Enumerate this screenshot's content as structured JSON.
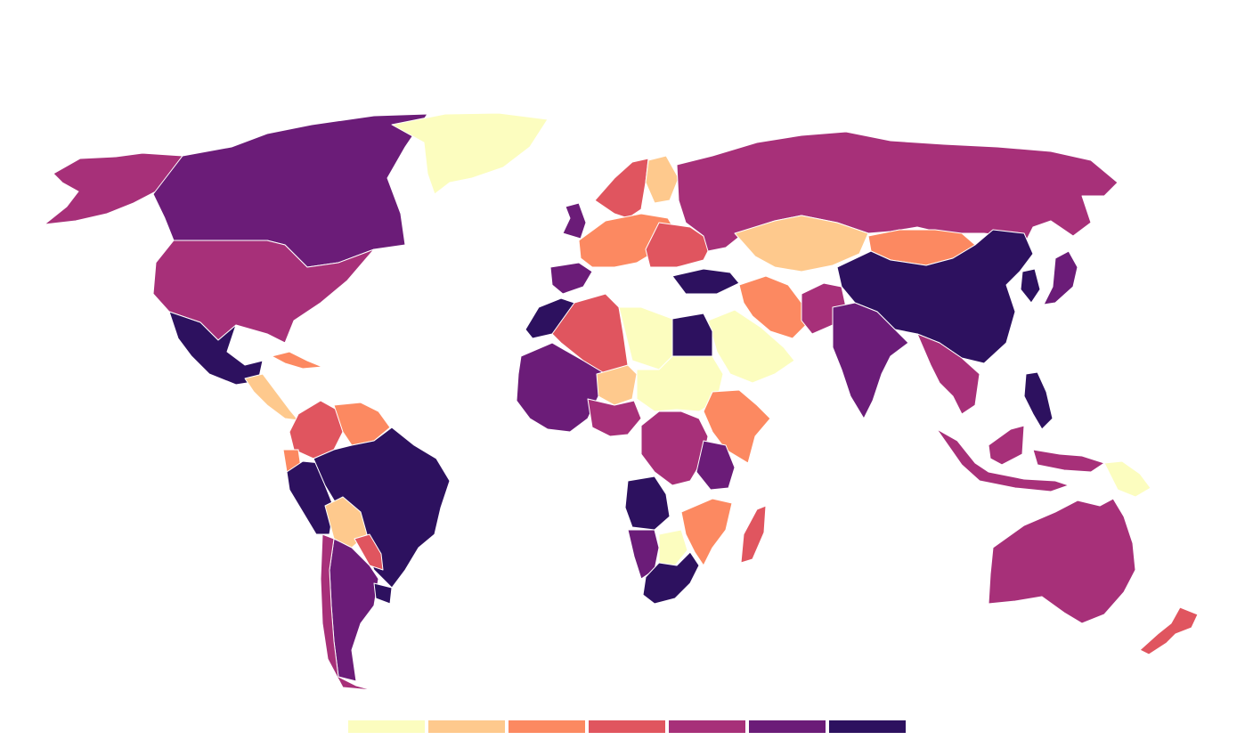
{
  "palette": {
    "c1": "#fcfdbf",
    "c2": "#fec98d",
    "c3": "#fc8961",
    "c4": "#e0555f",
    "c5": "#a73079",
    "c6": "#6b1c78",
    "c7": "#2d115f"
  },
  "legend": {
    "classes": [
      "c1",
      "c2",
      "c3",
      "c4",
      "c5",
      "c6",
      "c7"
    ]
  },
  "regions": [
    {
      "name": "alaska",
      "class": "c5"
    },
    {
      "name": "canada",
      "class": "c6"
    },
    {
      "name": "greenland",
      "class": "c1"
    },
    {
      "name": "usa",
      "class": "c5"
    },
    {
      "name": "mexico",
      "class": "c7"
    },
    {
      "name": "central-america",
      "class": "c2"
    },
    {
      "name": "cuba",
      "class": "c3"
    },
    {
      "name": "colombia",
      "class": "c4"
    },
    {
      "name": "venezuela",
      "class": "c3"
    },
    {
      "name": "ecuador",
      "class": "c3"
    },
    {
      "name": "peru",
      "class": "c7"
    },
    {
      "name": "brazil",
      "class": "c7"
    },
    {
      "name": "bolivia",
      "class": "c2"
    },
    {
      "name": "paraguay",
      "class": "c4"
    },
    {
      "name": "argentina",
      "class": "c6"
    },
    {
      "name": "chile",
      "class": "c5"
    },
    {
      "name": "uruguay",
      "class": "c7"
    },
    {
      "name": "scandinavia",
      "class": "c4"
    },
    {
      "name": "finland",
      "class": "c2"
    },
    {
      "name": "uk",
      "class": "c6"
    },
    {
      "name": "western-europe",
      "class": "c3"
    },
    {
      "name": "iberia",
      "class": "c6"
    },
    {
      "name": "eastern-europe",
      "class": "c4"
    },
    {
      "name": "russia",
      "class": "c5"
    },
    {
      "name": "kazakhstan",
      "class": "c2"
    },
    {
      "name": "mongolia",
      "class": "c3"
    },
    {
      "name": "china",
      "class": "c7"
    },
    {
      "name": "turkey",
      "class": "c7"
    },
    {
      "name": "iran",
      "class": "c3"
    },
    {
      "name": "saudi-arabia",
      "class": "c1"
    },
    {
      "name": "pakistan",
      "class": "c5"
    },
    {
      "name": "india",
      "class": "c6"
    },
    {
      "name": "southeast-asia",
      "class": "c5"
    },
    {
      "name": "japan",
      "class": "c6"
    },
    {
      "name": "korea",
      "class": "c7"
    },
    {
      "name": "philippines",
      "class": "c7"
    },
    {
      "name": "indonesia",
      "class": "c5"
    },
    {
      "name": "papua",
      "class": "c1"
    },
    {
      "name": "australia",
      "class": "c5"
    },
    {
      "name": "new-zealand",
      "class": "c4"
    },
    {
      "name": "morocco",
      "class": "c7"
    },
    {
      "name": "algeria",
      "class": "c4"
    },
    {
      "name": "libya",
      "class": "c1"
    },
    {
      "name": "egypt",
      "class": "c7"
    },
    {
      "name": "west-africa",
      "class": "c6"
    },
    {
      "name": "niger",
      "class": "c2"
    },
    {
      "name": "chad-sudan",
      "class": "c1"
    },
    {
      "name": "nigeria",
      "class": "c5"
    },
    {
      "name": "ethiopia",
      "class": "c3"
    },
    {
      "name": "congo",
      "class": "c5"
    },
    {
      "name": "tanzania",
      "class": "c6"
    },
    {
      "name": "angola",
      "class": "c7"
    },
    {
      "name": "namibia",
      "class": "c6"
    },
    {
      "name": "botswana",
      "class": "c1"
    },
    {
      "name": "south-africa",
      "class": "c7"
    },
    {
      "name": "mozambique",
      "class": "c3"
    },
    {
      "name": "madagascar",
      "class": "c4"
    }
  ]
}
